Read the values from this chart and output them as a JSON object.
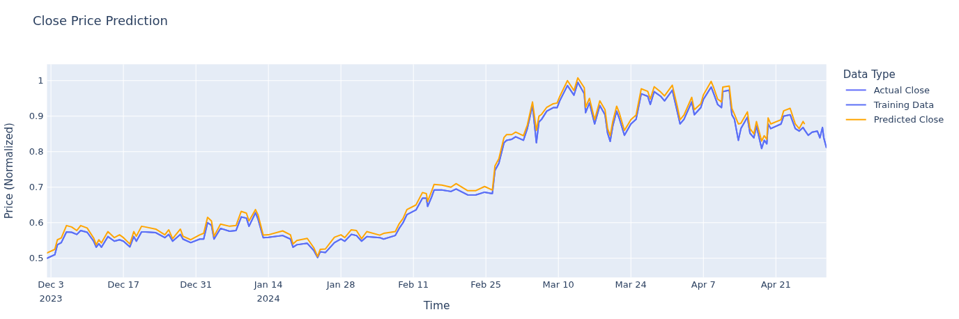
{
  "chart_data": {
    "type": "line",
    "title": "Close Price Prediction",
    "xlabel": "Time",
    "ylabel": "Price (Normalized)",
    "legend_title": "Data Type",
    "grid": true,
    "legend": "top right",
    "line_style": "solid",
    "xlim": [
      "2023-12-02T06:00",
      "2024-04-30T18:00"
    ],
    "ylim": [
      0.446,
      1.046
    ],
    "xticks": [
      {
        "value": "2023-12-03",
        "label": "Dec 3\n2023"
      },
      {
        "value": "2023-12-17",
        "label": "Dec 17"
      },
      {
        "value": "2023-12-31",
        "label": "Dec 31"
      },
      {
        "value": "2024-01-14",
        "label": "Jan 14\n2024"
      },
      {
        "value": "2024-01-28",
        "label": "Jan 28"
      },
      {
        "value": "2024-02-11",
        "label": "Feb 11"
      },
      {
        "value": "2024-02-25",
        "label": "Feb 25"
      },
      {
        "value": "2024-03-10",
        "label": "Mar 10"
      },
      {
        "value": "2024-03-24",
        "label": "Mar 24"
      },
      {
        "value": "2024-04-07",
        "label": "Apr 7"
      },
      {
        "value": "2024-04-21",
        "label": "Apr 21"
      }
    ],
    "yticks": [
      0.5,
      0.6,
      0.7,
      0.8,
      0.9,
      1
    ],
    "x": [
      "2023-12-02T06:00",
      "2023-12-03T18:00",
      "2023-12-04T06:00",
      "2023-12-05T00:00",
      "2023-12-06T00:00",
      "2023-12-07T00:00",
      "2023-12-08T00:00",
      "2023-12-08T18:00",
      "2023-12-10T00:00",
      "2023-12-11T06:00",
      "2023-12-11T18:00",
      "2023-12-12T06:00",
      "2023-12-12T18:00",
      "2023-12-14T00:00",
      "2023-12-15T06:00",
      "2023-12-16T06:00",
      "2023-12-17T00:00",
      "2023-12-18T06:00",
      "2023-12-19T00:00",
      "2023-12-19T12:00",
      "2023-12-20T12:00",
      "2023-12-21T06:00",
      "2023-12-23T06:00",
      "2023-12-25T00:00",
      "2023-12-25T18:00",
      "2023-12-26T12:00",
      "2023-12-28T00:00",
      "2023-12-28T12:00",
      "2023-12-30T00:00",
      "2023-12-31T18:00",
      "2024-01-01T12:00",
      "2024-01-02T06:00",
      "2024-01-03T00:00",
      "2024-01-03T12:00",
      "2024-01-04T18:00",
      "2024-01-06T12:00",
      "2024-01-07T18:00",
      "2024-01-08T18:00",
      "2024-01-09T18:00",
      "2024-01-10T06:00",
      "2024-01-11T12:00",
      "2024-01-12T00:00",
      "2024-01-13T00:00",
      "2024-01-14T00:00",
      "2024-01-16T18:00",
      "2024-01-18T06:00",
      "2024-01-18T18:00",
      "2024-01-19T12:00",
      "2024-01-21T12:00",
      "2024-01-22T18:00",
      "2024-01-23T12:00",
      "2024-01-24T00:00",
      "2024-01-25T00:00",
      "2024-01-26T18:00",
      "2024-01-28T00:00",
      "2024-01-28T18:00",
      "2024-01-30T00:00",
      "2024-01-31T00:00",
      "2024-02-01T00:00",
      "2024-02-02T00:00",
      "2024-02-04T12:00",
      "2024-02-05T06:00",
      "2024-02-07T12:00",
      "2024-02-08T06:00",
      "2024-02-09T00:00",
      "2024-02-09T18:00",
      "2024-02-11T12:00",
      "2024-02-12T18:00",
      "2024-02-13T12:00",
      "2024-02-13T18:00",
      "2024-02-14T12:00",
      "2024-02-15T00:00",
      "2024-02-16T12:00",
      "2024-02-18T06:00",
      "2024-02-19T06:00",
      "2024-02-21T12:00",
      "2024-02-23T00:00",
      "2024-02-24T18:00",
      "2024-02-26T06:00",
      "2024-02-26T18:00",
      "2024-02-27T12:00",
      "2024-02-28T12:00",
      "2024-02-29T00:00",
      "2024-03-01T00:00",
      "2024-03-01T18:00",
      "2024-03-03T06:00",
      "2024-03-04T00:00",
      "2024-03-05T00:00",
      "2024-03-05T18:00",
      "2024-03-06T06:00",
      "2024-03-06T18:00",
      "2024-03-07T18:00",
      "2024-03-09T00:00",
      "2024-03-09T18:00",
      "2024-03-10T06:00",
      "2024-03-11T18:00",
      "2024-03-13T00:00",
      "2024-03-13T18:00",
      "2024-03-15T00:00",
      "2024-03-15T06:00",
      "2024-03-16T00:00",
      "2024-03-17T00:00",
      "2024-03-18T00:00",
      "2024-03-19T00:00",
      "2024-03-19T12:00",
      "2024-03-20T00:00",
      "2024-03-20T12:00",
      "2024-03-21T06:00",
      "2024-03-21T18:00",
      "2024-03-22T18:00",
      "2024-03-24T00:00",
      "2024-03-25T00:00",
      "2024-03-26T00:00",
      "2024-03-27T06:00",
      "2024-03-27T18:00",
      "2024-03-28T12:00",
      "2024-03-29T18:00",
      "2024-03-30T12:00",
      "2024-04-01T00:00",
      "2024-04-02T00:00",
      "2024-04-02T12:00",
      "2024-04-03T06:00",
      "2024-04-04T18:00",
      "2024-04-05T06:00",
      "2024-04-06T12:00",
      "2024-04-07T00:00",
      "2024-04-08T12:00",
      "2024-04-09T00:00",
      "2024-04-09T18:00",
      "2024-04-10T12:00",
      "2024-04-10T18:00",
      "2024-04-12T00:00",
      "2024-04-12T12:00",
      "2024-04-13T00:00",
      "2024-04-13T18:00",
      "2024-04-14T06:00",
      "2024-04-15T12:00",
      "2024-04-16T00:00",
      "2024-04-16T18:00",
      "2024-04-17T06:00",
      "2024-04-18T06:00",
      "2024-04-18T18:00",
      "2024-04-19T06:00",
      "2024-04-19T12:00",
      "2024-04-20T00:00",
      "2024-04-22T00:00",
      "2024-04-22T12:00",
      "2024-04-23T18:00",
      "2024-04-24T18:00",
      "2024-04-25T12:00",
      "2024-04-26T06:00",
      "2024-04-26T12:00",
      "2024-04-27T06:00",
      "2024-04-28T00:00",
      "2024-04-29T00:00",
      "2024-04-29T12:00",
      "2024-04-30T00:00",
      "2024-04-30T06:00",
      "2024-04-30T18:00"
    ],
    "series": [
      {
        "name": "Actual Close",
        "color": "#636efa",
        "values": [
          0.5,
          0.51,
          0.538,
          0.544,
          0.574,
          0.573,
          0.567,
          0.578,
          0.573,
          0.548,
          0.531,
          0.541,
          0.531,
          0.561,
          0.548,
          0.552,
          0.548,
          0.532,
          0.561,
          0.548,
          0.574,
          0.574,
          0.572,
          0.558,
          0.567,
          0.548,
          0.567,
          0.554,
          0.544,
          0.554,
          0.554,
          0.6,
          0.593,
          0.554,
          0.584,
          0.576,
          0.578,
          0.616,
          0.613,
          0.59,
          0.628,
          0.61,
          0.558,
          0.559,
          0.564,
          0.554,
          0.531,
          0.538,
          0.542,
          0.522,
          0.502,
          0.518,
          0.516,
          0.544,
          0.554,
          0.548,
          0.567,
          0.564,
          0.548,
          0.561,
          0.558,
          0.554,
          0.564,
          0.584,
          0.6,
          0.623,
          0.636,
          0.669,
          0.669,
          0.646,
          0.672,
          0.692,
          0.692,
          0.688,
          0.695,
          0.678,
          0.678,
          0.686,
          0.682,
          0.747,
          0.767,
          0.825,
          0.832,
          0.835,
          0.842,
          0.832,
          0.865,
          0.93,
          0.825,
          0.884,
          0.891,
          0.914,
          0.924,
          0.924,
          0.943,
          0.986,
          0.959,
          0.995,
          0.963,
          0.91,
          0.937,
          0.878,
          0.93,
          0.904,
          0.852,
          0.829,
          0.872,
          0.914,
          0.894,
          0.846,
          0.878,
          0.891,
          0.963,
          0.956,
          0.933,
          0.969,
          0.956,
          0.943,
          0.973,
          0.91,
          0.878,
          0.891,
          0.94,
          0.904,
          0.924,
          0.947,
          0.982,
          0.963,
          0.933,
          0.924,
          0.969,
          0.973,
          0.904,
          0.891,
          0.832,
          0.865,
          0.897,
          0.852,
          0.839,
          0.872,
          0.809,
          0.832,
          0.822,
          0.878,
          0.865,
          0.878,
          0.9,
          0.904,
          0.865,
          0.858,
          0.868,
          0.862,
          0.846,
          0.855,
          0.858,
          0.839,
          0.868,
          0.839,
          0.812
        ]
      },
      {
        "name": "Training Data",
        "color": "#5a6ff5",
        "values": [
          0.5,
          0.51,
          0.538,
          0.544,
          0.574,
          0.573,
          0.567,
          0.578,
          0.573,
          0.548,
          0.531,
          0.541,
          0.531,
          0.561,
          0.548,
          0.552,
          0.548,
          0.532,
          0.561,
          0.548,
          0.574,
          0.574,
          0.572,
          0.558,
          0.567,
          0.548,
          0.567,
          0.554,
          0.544,
          0.554,
          0.554,
          0.6,
          0.593,
          0.554,
          0.584,
          0.576,
          0.578,
          0.616,
          0.613,
          0.59,
          0.628,
          0.61,
          0.558,
          0.559,
          0.564,
          0.554,
          0.531,
          0.538,
          0.542,
          0.522,
          0.502,
          0.518,
          0.516,
          0.544,
          0.554,
          0.548,
          0.567,
          0.564,
          0.548,
          0.561,
          0.558,
          0.554,
          0.564,
          0.584,
          0.6,
          0.623,
          0.636,
          0.669,
          0.669,
          0.646,
          0.672,
          0.692,
          0.692,
          0.688,
          0.695,
          0.678,
          0.678,
          0.686,
          0.682,
          0.747,
          0.767,
          0.825,
          0.832,
          0.835,
          0.842,
          0.832,
          0.865,
          0.93,
          0.825,
          0.884,
          0.891,
          0.914,
          0.924,
          0.924,
          0.943,
          0.986,
          0.959,
          0.995,
          0.963,
          0.91,
          0.937,
          0.878,
          0.93,
          0.904,
          0.852,
          0.829,
          0.872,
          0.914,
          0.894,
          0.846,
          0.878,
          0.891,
          0.963,
          0.956,
          0.933,
          0.969,
          0.956,
          0.943,
          0.973,
          0.91,
          0.878,
          0.891,
          0.94,
          0.904,
          0.924,
          0.947,
          0.982,
          0.963,
          0.933,
          0.924,
          0.969,
          0.973,
          0.904,
          0.891,
          0.832,
          0.865,
          0.897,
          0.852,
          0.839,
          0.872,
          0.809,
          0.832,
          0.822,
          0.878,
          0.865,
          0.878,
          0.9,
          0.904,
          0.865,
          0.858,
          0.868,
          0.862,
          0.846,
          0.855,
          0.858,
          0.839,
          0.868,
          0.839,
          0.812
        ]
      },
      {
        "name": "Predicted Close",
        "color": "#ffa500",
        "values": [
          0.515,
          0.525,
          0.552,
          0.557,
          0.592,
          0.588,
          0.578,
          0.592,
          0.585,
          0.557,
          0.538,
          0.552,
          0.543,
          0.575,
          0.558,
          0.566,
          0.558,
          0.54,
          0.575,
          0.562,
          0.59,
          0.588,
          0.582,
          0.566,
          0.58,
          0.555,
          0.582,
          0.562,
          0.552,
          0.566,
          0.57,
          0.615,
          0.605,
          0.562,
          0.596,
          0.59,
          0.592,
          0.632,
          0.627,
          0.605,
          0.637,
          0.622,
          0.565,
          0.566,
          0.577,
          0.566,
          0.54,
          0.55,
          0.556,
          0.53,
          0.505,
          0.525,
          0.526,
          0.559,
          0.566,
          0.558,
          0.58,
          0.578,
          0.555,
          0.575,
          0.565,
          0.57,
          0.575,
          0.597,
          0.612,
          0.637,
          0.65,
          0.685,
          0.682,
          0.66,
          0.688,
          0.708,
          0.706,
          0.7,
          0.71,
          0.69,
          0.69,
          0.702,
          0.692,
          0.76,
          0.78,
          0.84,
          0.848,
          0.848,
          0.855,
          0.845,
          0.875,
          0.94,
          0.86,
          0.9,
          0.905,
          0.925,
          0.935,
          0.937,
          0.955,
          1.0,
          0.972,
          1.008,
          0.98,
          0.925,
          0.95,
          0.89,
          0.943,
          0.918,
          0.865,
          0.845,
          0.885,
          0.928,
          0.91,
          0.86,
          0.89,
          0.903,
          0.977,
          0.97,
          0.948,
          0.983,
          0.968,
          0.957,
          0.987,
          0.925,
          0.89,
          0.903,
          0.953,
          0.918,
          0.935,
          0.96,
          0.998,
          0.98,
          0.948,
          0.94,
          0.982,
          0.985,
          0.922,
          0.905,
          0.878,
          0.88,
          0.912,
          0.865,
          0.85,
          0.885,
          0.83,
          0.845,
          0.835,
          0.895,
          0.878,
          0.89,
          0.915,
          0.922,
          0.878,
          0.865,
          0.885,
          0.879,
          null,
          null,
          null,
          null,
          null,
          null,
          null
        ]
      }
    ]
  }
}
